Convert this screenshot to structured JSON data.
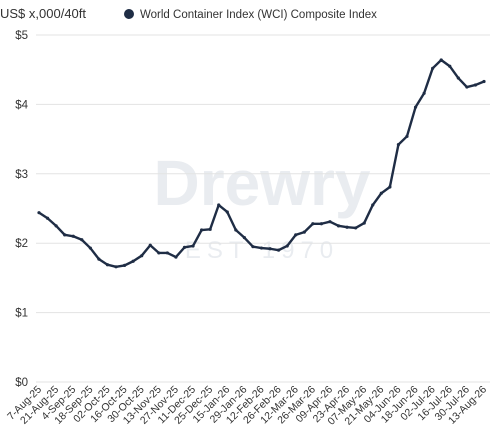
{
  "chart_data": {
    "type": "line",
    "y_axis_label": "US$ x,000/40ft",
    "watermark": "Drewry",
    "watermark_sub": "EST 1970",
    "categories": [
      "7-Aug-25",
      null,
      "21-Aug-25",
      null,
      "4-Sep-25",
      null,
      "18-Sep-25",
      null,
      "02-Oct-25",
      null,
      "16-Oct-25",
      null,
      "30-Oct-25",
      null,
      "13-Nov-25",
      null,
      "27-Nov-25",
      null,
      "11-Dec-25",
      null,
      "25-Dec-25",
      null,
      "15-Jan-26",
      null,
      "29-Jan-26",
      null,
      "12-Feb-26",
      null,
      "26-Feb-26",
      null,
      "12-Mar-26",
      null,
      "26-Mar-26",
      null,
      "09-Apr-26",
      null,
      "23-Apr-26",
      null,
      "07-May-26",
      null,
      "21-May-26",
      null,
      "04-Jun-26",
      null,
      "18-Jun-26",
      null,
      "02-Jul-26",
      null,
      "16-Jul-26",
      null,
      "30-Jul-26",
      null,
      "13-Aug-26"
    ],
    "series": [
      {
        "name": "World Container Index (WCI) Composite Index",
        "color": "#1f2d45",
        "values": [
          2.44,
          2.36,
          2.25,
          2.12,
          2.1,
          2.05,
          1.93,
          1.77,
          1.69,
          1.66,
          1.68,
          1.74,
          1.82,
          1.97,
          1.86,
          1.86,
          1.8,
          1.94,
          1.96,
          2.19,
          2.2,
          2.55,
          2.45,
          2.19,
          2.08,
          1.95,
          1.93,
          1.92,
          1.9,
          1.96,
          2.12,
          2.16,
          2.28,
          2.28,
          2.31,
          2.25,
          2.23,
          2.22,
          2.29,
          2.55,
          2.72,
          2.81,
          3.42,
          3.54,
          3.96,
          4.16,
          4.52,
          4.64,
          4.55,
          4.38,
          4.25,
          4.28,
          4.33
        ]
      }
    ],
    "ylim": [
      0,
      5
    ],
    "yticks": [
      {
        "value": 0,
        "label": "$0"
      },
      {
        "value": 1,
        "label": "$1"
      },
      {
        "value": 2,
        "label": "$2"
      },
      {
        "value": 3,
        "label": "$3"
      },
      {
        "value": 4,
        "label": "$4"
      },
      {
        "value": 5,
        "label": "$5"
      }
    ],
    "grid": true
  }
}
